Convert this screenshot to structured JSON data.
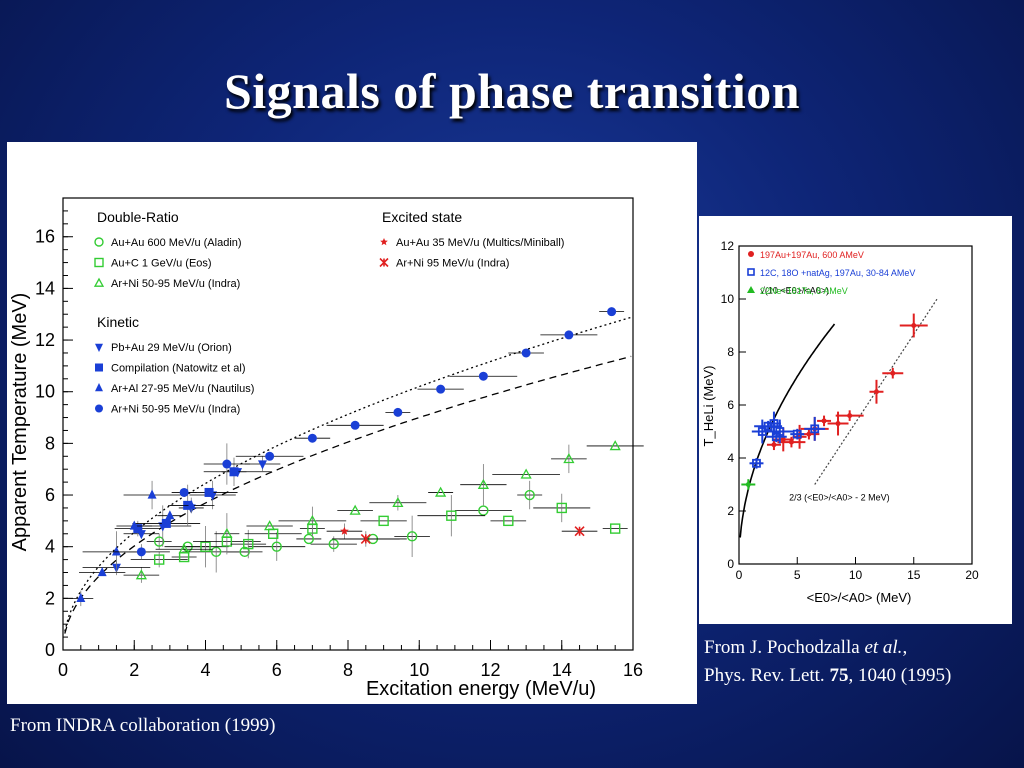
{
  "slide": {
    "title": "Signals of phase transition"
  },
  "captions": {
    "left": "From INDRA collaboration (1999)",
    "right_line1_prefix": "From J. Pochodzalla ",
    "right_line1_italic": "et al.",
    "right_line1_suffix": ",",
    "right_line2_prefix": "Phys. Rev. Lett. ",
    "right_line2_bold": "75",
    "right_line2_suffix": ", 1040 (1995)"
  },
  "chart_data": [
    {
      "type": "scatter",
      "title": "",
      "xlabel": "Excitation energy (MeV/u)",
      "ylabel": "Apparent Temperature (MeV)",
      "xlim": [
        0,
        16
      ],
      "ylim": [
        0,
        17.5
      ],
      "xticks": [
        0,
        2,
        4,
        6,
        8,
        10,
        12,
        14,
        16
      ],
      "yticks": [
        0,
        2,
        4,
        6,
        8,
        10,
        12,
        14,
        16
      ],
      "legend_groups": [
        {
          "heading": "Double-Ratio",
          "entries": [
            "Au+Au 600 MeV/u (Aladin)",
            "Au+C 1 GeV/u (Eos)",
            "Ar+Ni 50-95 MeV/u (Indra)"
          ]
        },
        {
          "heading": "Kinetic",
          "entries": [
            "Pb+Au 29 MeV/u (Orion)",
            "Compilation (Natowitz et al)",
            "Ar+Al 27-95 MeV/u (Nautilus)",
            "Ar+Ni 50-95 MeV/u (Indra)"
          ]
        },
        {
          "heading": "Excited state",
          "entries": [
            "Au+Au 35 MeV/u (Multics/Miniball)",
            "Ar+Ni 95 MeV/u (Indra)"
          ]
        }
      ],
      "series": [
        {
          "name": "Au+Au 600 MeV/u (Aladin)",
          "color": "#33cc33",
          "marker": "open-circle",
          "points": [
            [
              2.7,
              4.2
            ],
            [
              3.5,
              4.0
            ],
            [
              4.3,
              3.8
            ],
            [
              5.1,
              3.8
            ],
            [
              6.0,
              4.0
            ],
            [
              6.9,
              4.3
            ],
            [
              7.6,
              4.1
            ],
            [
              8.7,
              4.3
            ],
            [
              9.8,
              4.4
            ],
            [
              11.8,
              5.4
            ],
            [
              13.1,
              6.0
            ]
          ]
        },
        {
          "name": "Au+C 1 GeV/u (Eos)",
          "color": "#33cc33",
          "marker": "open-square",
          "points": [
            [
              2.7,
              3.5
            ],
            [
              3.4,
              3.6
            ],
            [
              4.0,
              4.0
            ],
            [
              4.6,
              4.2
            ],
            [
              5.2,
              4.1
            ],
            [
              5.9,
              4.5
            ],
            [
              7.0,
              4.7
            ],
            [
              9.0,
              5.0
            ],
            [
              10.9,
              5.2
            ],
            [
              12.5,
              5.0
            ],
            [
              14.0,
              5.5
            ],
            [
              15.5,
              4.7
            ]
          ]
        },
        {
          "name": "Ar+Ni 50-95 MeV/u (Indra) double-ratio",
          "color": "#33cc33",
          "marker": "open-triangle",
          "points": [
            [
              2.2,
              2.9
            ],
            [
              3.4,
              3.9
            ],
            [
              4.6,
              4.5
            ],
            [
              5.8,
              4.8
            ],
            [
              7.0,
              5.0
            ],
            [
              8.2,
              5.4
            ],
            [
              9.4,
              5.7
            ],
            [
              10.6,
              6.1
            ],
            [
              11.8,
              6.4
            ],
            [
              13.0,
              6.8
            ],
            [
              14.2,
              7.4
            ],
            [
              15.5,
              7.9
            ]
          ]
        },
        {
          "name": "Pb+Au 29 MeV/u (Orion)",
          "color": "#1a3fd6",
          "marker": "filled-triangle-down",
          "points": [
            [
              1.5,
              3.2
            ],
            [
              2.2,
              4.5
            ],
            [
              2.8,
              4.8
            ],
            [
              3.6,
              5.5
            ],
            [
              4.2,
              6.0
            ],
            [
              4.9,
              6.9
            ],
            [
              5.6,
              7.2
            ]
          ]
        },
        {
          "name": "Compilation (Natowitz et al)",
          "color": "#1a3fd6",
          "marker": "filled-square",
          "points": [
            [
              2.1,
              4.7
            ],
            [
              2.9,
              4.9
            ],
            [
              3.5,
              5.6
            ],
            [
              4.1,
              6.1
            ],
            [
              4.8,
              6.9
            ]
          ]
        },
        {
          "name": "Ar+Al 27-95 MeV/u (Nautilus)",
          "color": "#1a3fd6",
          "marker": "filled-triangle-up",
          "points": [
            [
              0.5,
              2.0
            ],
            [
              1.1,
              3.0
            ],
            [
              1.5,
              3.8
            ],
            [
              2.0,
              4.8
            ],
            [
              2.5,
              6.0
            ],
            [
              3.0,
              5.2
            ],
            [
              3.6,
              5.6
            ]
          ]
        },
        {
          "name": "Ar+Ni 50-95 MeV/u (Indra) kinetic",
          "color": "#1a3fd6",
          "marker": "filled-circle",
          "points": [
            [
              2.2,
              3.8
            ],
            [
              3.4,
              6.1
            ],
            [
              4.6,
              7.2
            ],
            [
              5.8,
              7.5
            ],
            [
              7.0,
              8.2
            ],
            [
              8.2,
              8.7
            ],
            [
              9.4,
              9.2
            ],
            [
              10.6,
              10.1
            ],
            [
              11.8,
              10.6
            ],
            [
              13.0,
              11.5
            ],
            [
              14.2,
              12.2
            ],
            [
              15.4,
              13.1
            ]
          ]
        },
        {
          "name": "Au+Au 35 MeV/u (Multics/Miniball)",
          "color": "#e02020",
          "marker": "star",
          "points": [
            [
              7.9,
              4.6
            ]
          ]
        },
        {
          "name": "Ar+Ni 95 MeV/u (Indra)",
          "color": "#e02020",
          "marker": "asterisk",
          "points": [
            [
              8.5,
              4.3
            ],
            [
              14.5,
              4.6
            ]
          ]
        }
      ],
      "curves": [
        "dotted upper curve",
        "dashed lower curve"
      ]
    },
    {
      "type": "scatter",
      "title": "",
      "xlabel": "<E0>/<A0> (MeV)",
      "ylabel": "T_HeLi (MeV)",
      "xlim": [
        0,
        20
      ],
      "ylim": [
        0,
        12
      ],
      "xticks": [
        0,
        5,
        10,
        15,
        20
      ],
      "yticks": [
        0,
        2,
        4,
        6,
        8,
        10,
        12
      ],
      "legend": [
        "197Au+197Au, 600 AMeV",
        "12C, 18O +natAg, 197Au, 30-84 AMeV",
        "22Ne+181Ta, 8 AMeV"
      ],
      "annotations": [
        "√(10 <E0>/<A0>)",
        "2/3 (<E0>/<A0> - 2 MeV)"
      ],
      "series": [
        {
          "name": "197Au+197Au, 600 AMeV",
          "color": "#e02020",
          "points": [
            [
              3,
              4.5
            ],
            [
              3.8,
              4.7
            ],
            [
              4.5,
              4.6
            ],
            [
              5.2,
              4.8
            ],
            [
              6,
              4.9
            ],
            [
              6.5,
              5.1
            ],
            [
              7.3,
              5.4
            ],
            [
              8.5,
              5.3
            ],
            [
              9.5,
              5.6
            ],
            [
              11.8,
              6.5
            ],
            [
              13.2,
              7.2
            ],
            [
              15,
              9.0
            ]
          ]
        },
        {
          "name": "12C, 18O +natAg, 197Au, 30-84 AMeV",
          "color": "#1a3fd6",
          "points": [
            [
              1.5,
              3.8
            ],
            [
              2,
              5.0
            ],
            [
              2.5,
              5.2
            ],
            [
              3,
              5.3
            ],
            [
              3.2,
              4.8
            ],
            [
              3.5,
              5.0
            ],
            [
              5,
              4.9
            ],
            [
              6.5,
              5.1
            ]
          ]
        },
        {
          "name": "22Ne+181Ta, 8 AMeV",
          "color": "#22bb22",
          "points": [
            [
              0.8,
              3.0
            ]
          ]
        }
      ]
    }
  ]
}
